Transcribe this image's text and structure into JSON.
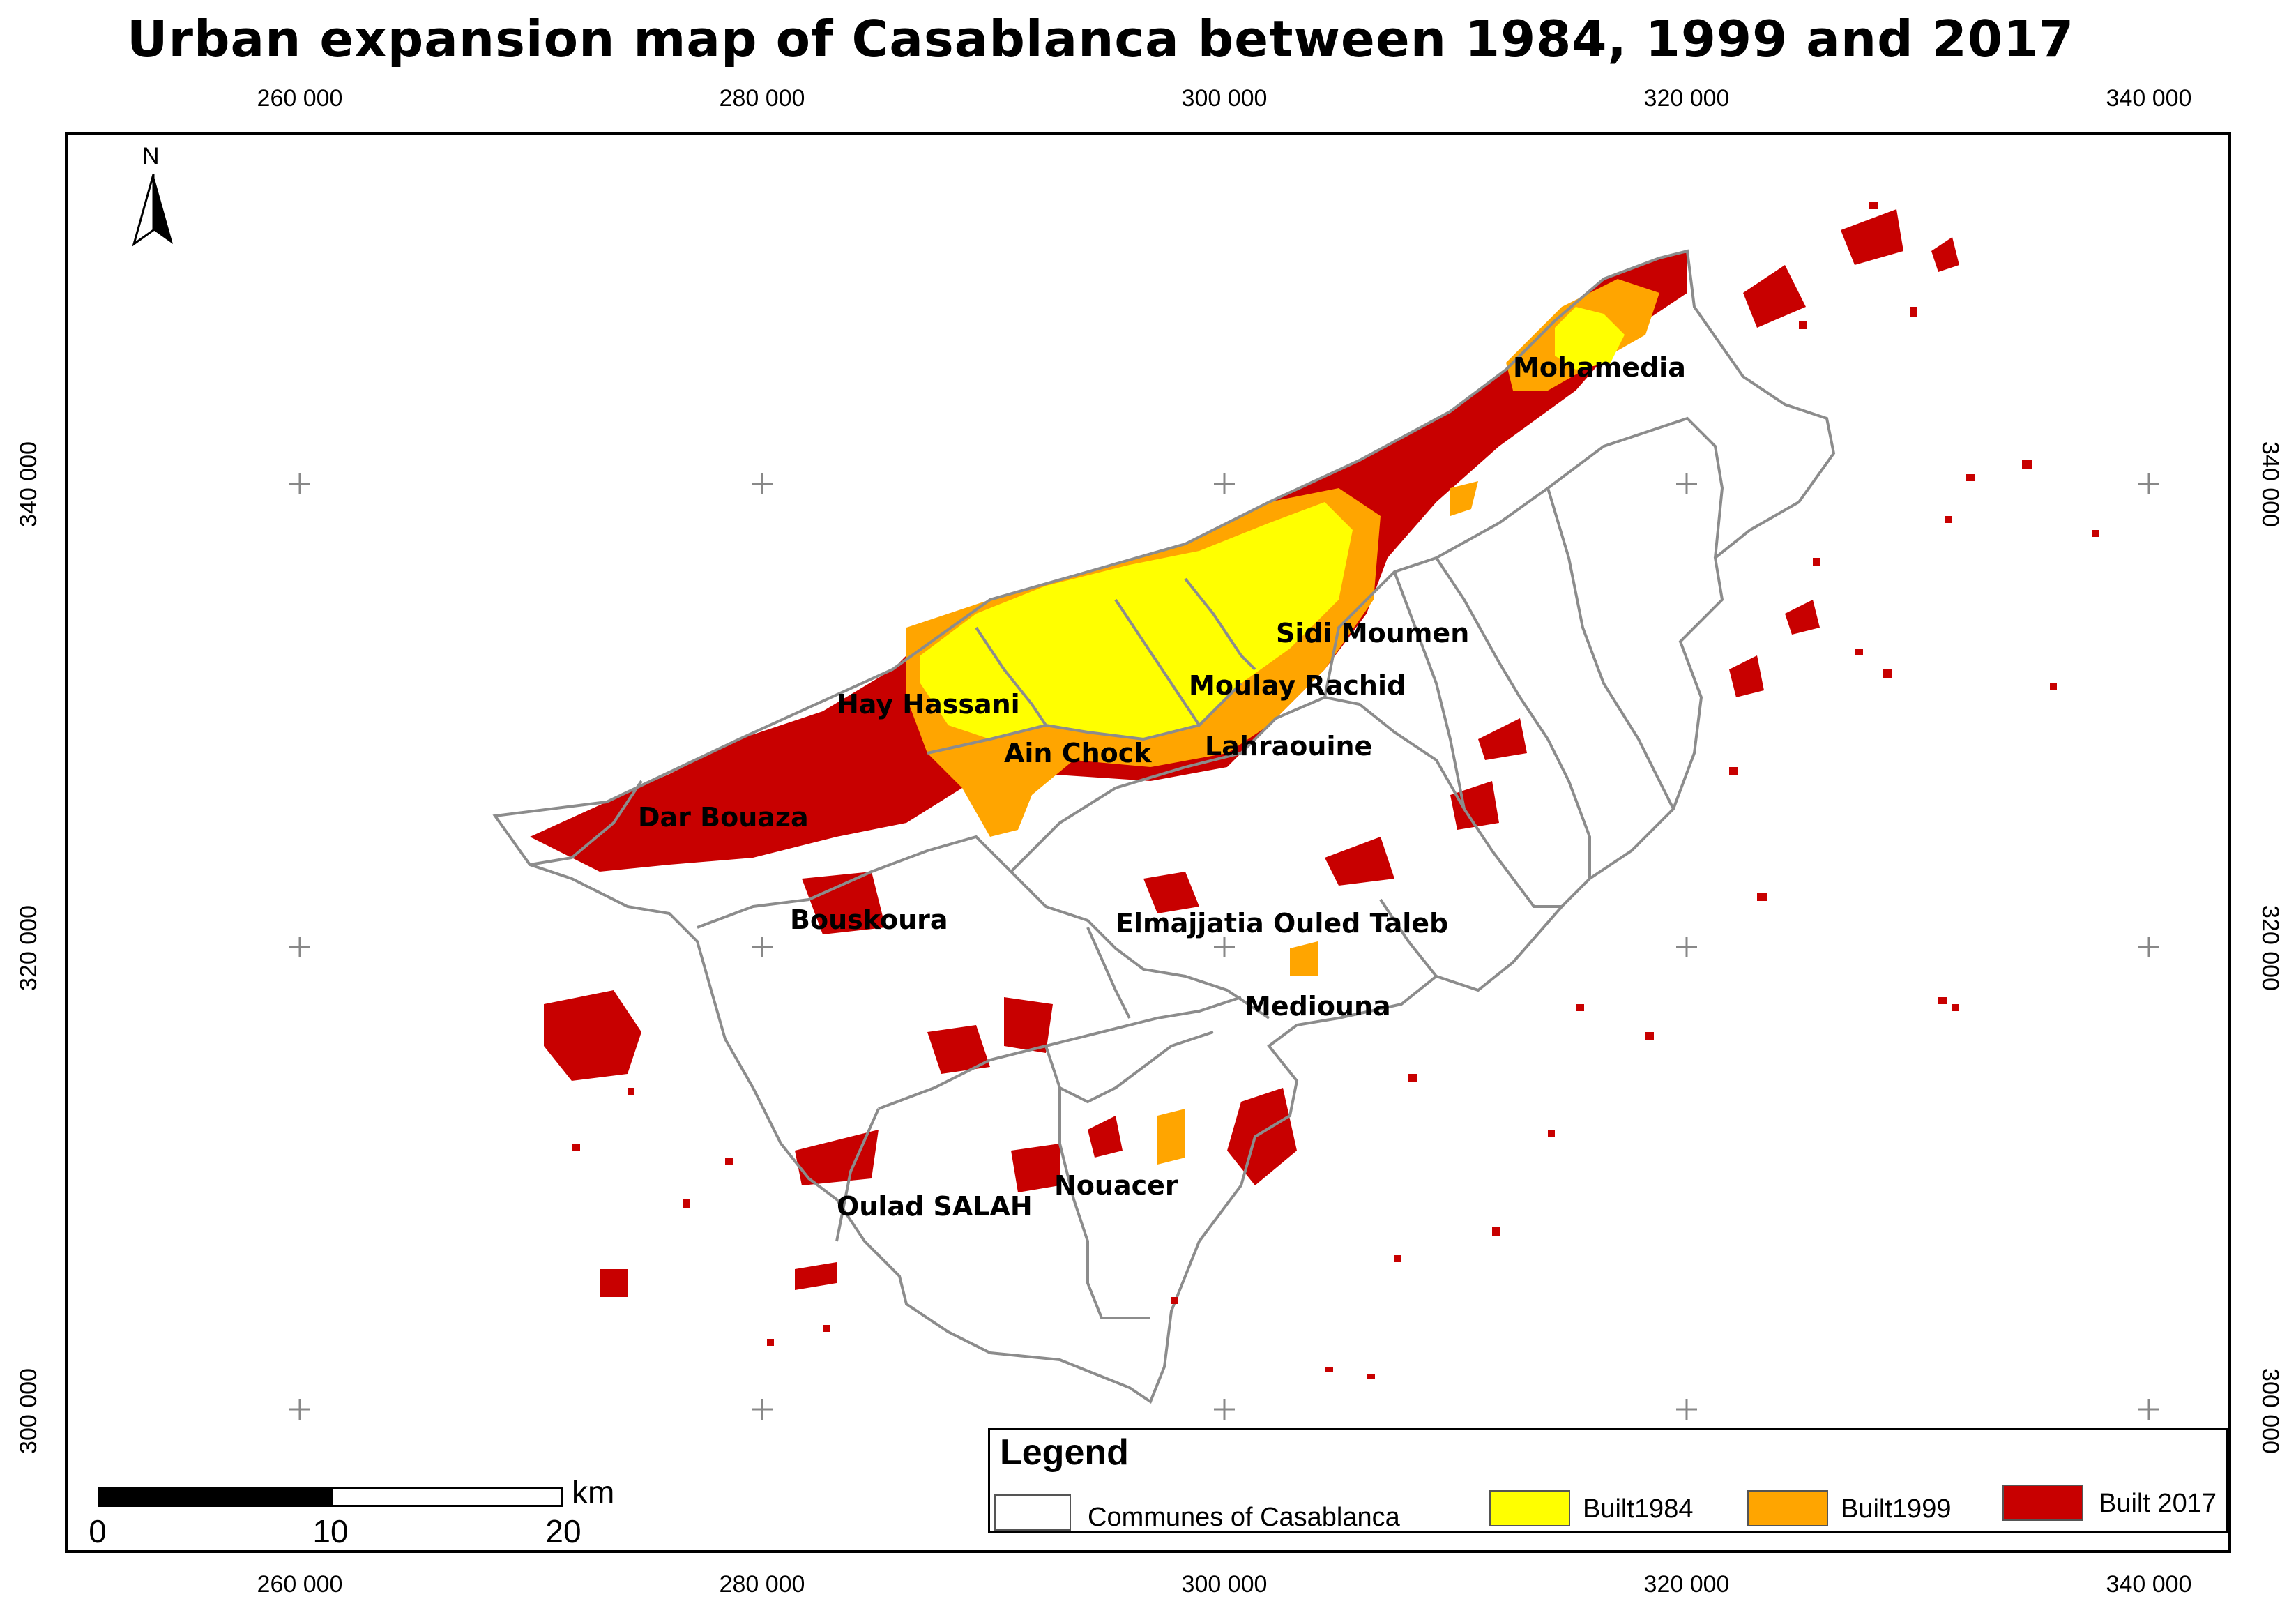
{
  "title": "Urban expansion map of Casablanca between 1984, 1999 and 2017",
  "x_ticks": [
    "260 000",
    "280 000",
    "300 000",
    "320 000",
    "340 000"
  ],
  "y_ticks": [
    "340 000",
    "320 000",
    "300 000"
  ],
  "north_label": "N",
  "places": [
    {
      "label": "Mohamedia"
    },
    {
      "label": "Sidi Moumen"
    },
    {
      "label": "Moulay Rachid"
    },
    {
      "label": "Hay Hassani"
    },
    {
      "label": "Ain Chock"
    },
    {
      "label": "Lahraouine"
    },
    {
      "label": "Dar Bouaza"
    },
    {
      "label": "Bouskoura"
    },
    {
      "label": "Elmajjatia Ouled Taleb"
    },
    {
      "label": "Mediouna"
    },
    {
      "label": "Nouacer"
    },
    {
      "label": "Oulad SALAH"
    }
  ],
  "legend": {
    "title": "Legend",
    "items": [
      {
        "label": "Communes of Casablanca",
        "color": "#ffffff"
      },
      {
        "label": "Built1984",
        "color": "#ffff00"
      },
      {
        "label": "Built1999",
        "color": "#ffa500"
      },
      {
        "label": "Built 2017",
        "color": "#c80000"
      }
    ]
  },
  "scale_bar": {
    "unit": "km",
    "labels": [
      "0",
      "10",
      "20"
    ]
  },
  "colors": {
    "built_1984": "#ffff00",
    "built_1999": "#ffa500",
    "built_2017": "#c80000",
    "commune_boundary": "#8c8c8c"
  }
}
